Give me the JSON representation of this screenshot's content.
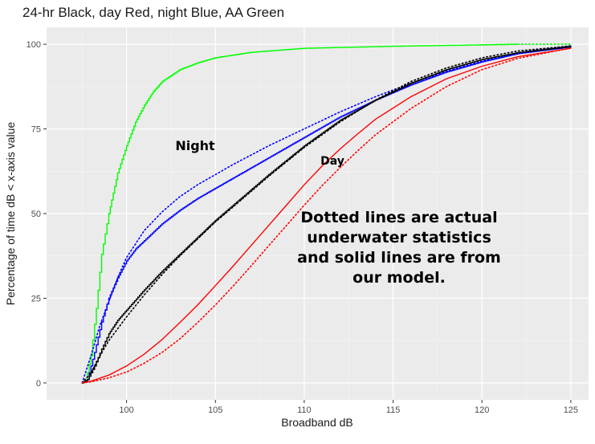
{
  "chart_data": {
    "type": "line",
    "title": "24-hr Black, day Red, night Blue, AA Green",
    "xlabel": "Broadband dB",
    "ylabel": "Percentage of time dB < x-axis value",
    "xlim": [
      95.5,
      126
    ],
    "ylim": [
      -5,
      105
    ],
    "x_ticks": [
      100,
      105,
      110,
      115,
      120,
      125
    ],
    "y_ticks": [
      0,
      25,
      50,
      75,
      100
    ],
    "grid": true,
    "background": "#ebebeb",
    "series": [
      {
        "color": "#00ff00",
        "style": "solid",
        "step": true,
        "x": [
          97.5,
          97.7,
          98.0,
          98.3,
          98.6,
          99.0,
          99.5,
          100.0,
          100.5,
          101.0,
          101.5,
          102.0,
          103.0,
          104.0,
          105.0,
          107.0,
          110.0,
          115.0,
          120.0,
          122.0
        ],
        "y": [
          0,
          0.5,
          8,
          22,
          38,
          50,
          62,
          70,
          77,
          82,
          86,
          89,
          92.5,
          94.5,
          96,
          97.6,
          98.8,
          99.4,
          99.8,
          100
        ]
      },
      {
        "color": "#00ff00",
        "style": "dotted",
        "x": [
          120.0,
          122.0,
          125.0
        ],
        "y": [
          99.8,
          100,
          100
        ]
      },
      {
        "color": "#0000ff",
        "style": "solid",
        "step": true,
        "x": [
          97.5,
          97.8,
          98.2,
          98.6,
          99.0,
          99.5,
          100.0,
          100.5,
          101.0,
          102.0,
          103.0,
          104.0,
          106.0,
          108.0,
          110.0,
          112.0,
          114.0,
          116.0,
          118.0,
          120.0,
          122.0,
          125.0
        ],
        "y": [
          0,
          1,
          9,
          18,
          25,
          31,
          36,
          39.5,
          42,
          47,
          51,
          54.5,
          60.5,
          66.5,
          72.5,
          78.5,
          83.5,
          88,
          91.8,
          94.8,
          97.2,
          99.2
        ]
      },
      {
        "color": "#0000ff",
        "style": "dotted",
        "x": [
          97.5,
          98.0,
          98.5,
          99.0,
          99.5,
          100.0,
          101.0,
          102.0,
          103.0,
          104.0,
          106.0,
          108.0,
          110.0,
          112.0,
          114.0,
          116.0,
          118.0,
          120.0,
          122.0,
          125.0
        ],
        "y": [
          0,
          8,
          17,
          24,
          31,
          37,
          45,
          50.5,
          55,
          58.5,
          64.5,
          70,
          75,
          80,
          84.5,
          88.5,
          92,
          95,
          97.5,
          99.5
        ]
      },
      {
        "color": "#000000",
        "style": "solid",
        "step": true,
        "x": [
          97.5,
          97.8,
          98.2,
          98.6,
          99.0,
          99.5,
          100.0,
          101.0,
          102.0,
          103.0,
          104.0,
          105.0,
          106.0,
          108.0,
          110.0,
          112.0,
          114.0,
          116.0,
          118.0,
          120.0,
          122.0,
          125.0
        ],
        "y": [
          0,
          1,
          5,
          10,
          14.5,
          18.5,
          21.5,
          27.5,
          33,
          38,
          43,
          48,
          52.5,
          61.5,
          70,
          77.5,
          83.5,
          88.5,
          92.5,
          95.5,
          97.5,
          99.3
        ]
      },
      {
        "color": "#000000",
        "style": "dotted",
        "x": [
          97.5,
          98.0,
          98.5,
          99.0,
          100.0,
          101.0,
          102.0,
          103.0,
          104.0,
          105.0,
          106.0,
          108.0,
          110.0,
          112.0,
          114.0,
          116.0,
          118.0,
          120.0,
          122.0,
          125.0
        ],
        "y": [
          0,
          3,
          8,
          12.5,
          19.5,
          26,
          32,
          37.5,
          42.5,
          47.5,
          52,
          61,
          69.5,
          77,
          83.5,
          89,
          93,
          96,
          98,
          99.5
        ]
      },
      {
        "color": "#ff0000",
        "style": "solid",
        "x": [
          97.5,
          98.0,
          99.0,
          100.0,
          101.0,
          102.0,
          103.0,
          104.0,
          105.0,
          106.0,
          107.0,
          108.0,
          109.0,
          110.0,
          111.0,
          112.0,
          113.0,
          114.0,
          116.0,
          118.0,
          120.0,
          122.0,
          125.0
        ],
        "y": [
          0,
          0.5,
          2.3,
          5,
          8.5,
          12.8,
          17.8,
          23,
          28.7,
          34.5,
          40.5,
          46.5,
          52.5,
          58.5,
          64,
          69,
          73.5,
          77.8,
          84.5,
          89.8,
          93.5,
          96.3,
          98.8
        ]
      },
      {
        "color": "#ff0000",
        "style": "dotted",
        "x": [
          97.5,
          98.0,
          99.0,
          100.0,
          101.0,
          102.0,
          103.0,
          104.0,
          105.0,
          106.0,
          107.0,
          108.0,
          109.0,
          110.0,
          111.0,
          112.0,
          113.0,
          114.0,
          116.0,
          118.0,
          120.0,
          122.0,
          125.0
        ],
        "y": [
          0,
          0.3,
          1.5,
          3.2,
          5.8,
          9,
          13,
          17.8,
          23,
          28.6,
          34.5,
          40.5,
          46.5,
          52.5,
          58.2,
          63.5,
          68.5,
          73.2,
          81,
          87.5,
          92.5,
          95.8,
          98.9
        ]
      }
    ],
    "annotations": {
      "night": "Night",
      "day": "Day",
      "note_lines": [
        "Dotted lines are actual",
        "underwater statistics",
        "and solid lines are from",
        "our model."
      ]
    }
  }
}
